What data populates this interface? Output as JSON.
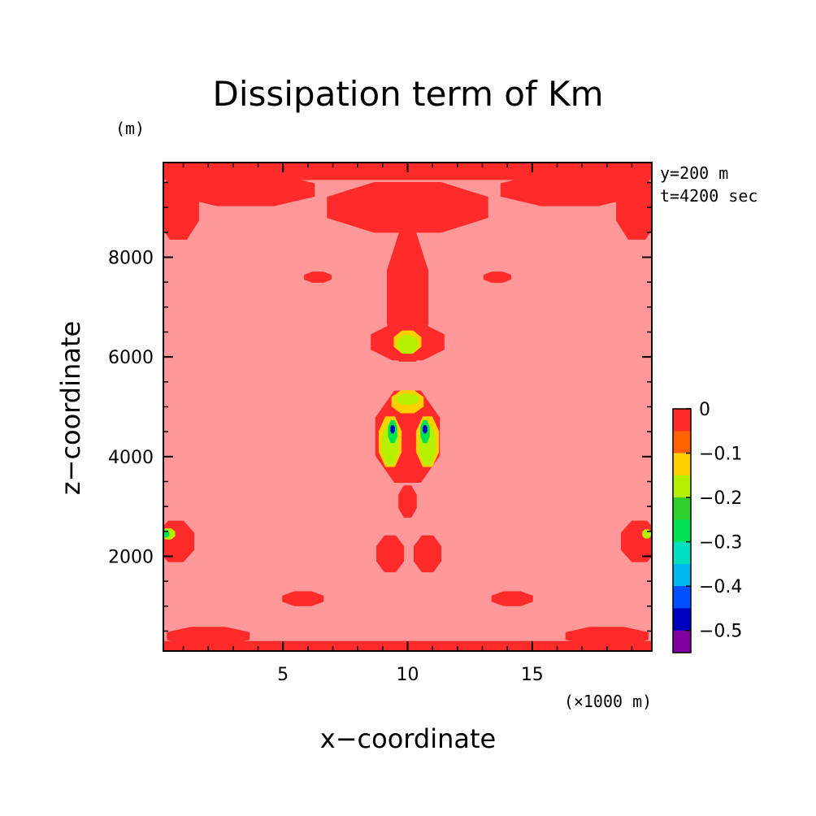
{
  "chart_data": {
    "type": "heatmap",
    "title": "Dissipation term of Km",
    "xlabel": "x−coordinate",
    "ylabel": "z−coordinate",
    "x_unit": "(×1000 m)",
    "y_unit": "(m)",
    "xlim": [
      0.2,
      19.8
    ],
    "ylim": [
      100,
      9900
    ],
    "x_ticks": [
      5,
      10,
      15
    ],
    "x_tick_labels": [
      "5",
      "10",
      "15"
    ],
    "y_ticks": [
      2000,
      4000,
      6000,
      8000
    ],
    "y_tick_labels": [
      "2000",
      "4000",
      "6000",
      "8000"
    ],
    "annotations": [
      "y=200 m",
      "t=4200 sec"
    ],
    "colorbar": {
      "levels": [
        0,
        -0.05,
        -0.1,
        -0.15,
        -0.2,
        -0.25,
        -0.3,
        -0.35,
        -0.4,
        -0.45,
        -0.5
      ],
      "tick_labels": [
        "0",
        "−0.1",
        "−0.2",
        "−0.3",
        "−0.4",
        "−0.5"
      ],
      "tick_values": [
        0,
        -0.1,
        -0.2,
        -0.3,
        -0.4,
        -0.5
      ],
      "colors": [
        "#ff2a2a",
        "#ff6000",
        "#ffd000",
        "#b4f000",
        "#2ed02e",
        "#00e050",
        "#00e0c0",
        "#00b8f0",
        "#0050ff",
        "#0000c0",
        "#8000a0"
      ]
    },
    "background_color": "#ff9898",
    "regions": [
      {
        "level": 0,
        "kind": "band",
        "x": [
          0.2,
          19.8
        ],
        "z": [
          9550,
          9900
        ]
      },
      {
        "level": 0,
        "kind": "band",
        "x": [
          0.2,
          19.8
        ],
        "z": [
          100,
          300
        ]
      },
      {
        "level": 0,
        "kind": "blob",
        "cx": 10.0,
        "cz": 9000,
        "rx": 3.5,
        "rz": 550
      },
      {
        "level": 0,
        "kind": "blob",
        "cx": 3.5,
        "cz": 9350,
        "rx": 3.0,
        "rz": 350
      },
      {
        "level": 0,
        "kind": "blob",
        "cx": 16.5,
        "cz": 9350,
        "rx": 3.0,
        "rz": 350
      },
      {
        "level": 0,
        "kind": "blob",
        "cx": 0.8,
        "cz": 9000,
        "rx": 0.9,
        "rz": 700
      },
      {
        "level": 0,
        "kind": "blob",
        "cx": 19.2,
        "cz": 9000,
        "rx": 0.9,
        "rz": 700
      },
      {
        "level": 0,
        "kind": "blob",
        "cx": 10.0,
        "cz": 7200,
        "rx": 0.9,
        "rz": 1400
      },
      {
        "level": 0,
        "kind": "blob",
        "cx": 6.4,
        "cz": 7600,
        "rx": 0.6,
        "rz": 120
      },
      {
        "level": 0,
        "kind": "blob",
        "cx": 13.6,
        "cz": 7600,
        "rx": 0.6,
        "rz": 120
      },
      {
        "level": 0,
        "kind": "blob",
        "cx": 10.0,
        "cz": 6300,
        "rx": 1.6,
        "rz": 400
      },
      {
        "level": 0,
        "kind": "blob",
        "cx": 10.0,
        "cz": 4400,
        "rx": 1.4,
        "rz": 1000
      },
      {
        "level": 0,
        "kind": "blob",
        "cx": 10.0,
        "cz": 3100,
        "rx": 0.4,
        "rz": 350
      },
      {
        "level": 0,
        "kind": "blob",
        "cx": 9.3,
        "cz": 2050,
        "rx": 0.6,
        "rz": 400
      },
      {
        "level": 0,
        "kind": "blob",
        "cx": 10.8,
        "cz": 2050,
        "rx": 0.6,
        "rz": 400
      },
      {
        "level": 0,
        "kind": "blob",
        "cx": 0.7,
        "cz": 2300,
        "rx": 0.8,
        "rz": 450
      },
      {
        "level": 0,
        "kind": "blob",
        "cx": 19.3,
        "cz": 2300,
        "rx": 0.8,
        "rz": 450
      },
      {
        "level": 0,
        "kind": "blob",
        "cx": 5.8,
        "cz": 1150,
        "rx": 0.9,
        "rz": 160
      },
      {
        "level": 0,
        "kind": "blob",
        "cx": 14.2,
        "cz": 1150,
        "rx": 0.9,
        "rz": 160
      },
      {
        "level": 0,
        "kind": "blob",
        "cx": 2.0,
        "cz": 400,
        "rx": 1.8,
        "rz": 200
      },
      {
        "level": 0,
        "kind": "blob",
        "cx": 18.0,
        "cz": 400,
        "rx": 1.8,
        "rz": 200
      },
      {
        "level": -0.1,
        "kind": "blob",
        "cx": 10.0,
        "cz": 6300,
        "rx": 0.6,
        "rz": 250
      },
      {
        "level": -0.1,
        "kind": "blob",
        "cx": 10.0,
        "cz": 5100,
        "rx": 0.7,
        "rz": 250
      },
      {
        "level": -0.1,
        "kind": "blob",
        "cx": 9.3,
        "cz": 4300,
        "rx": 0.5,
        "rz": 550
      },
      {
        "level": -0.1,
        "kind": "blob",
        "cx": 10.8,
        "cz": 4300,
        "rx": 0.5,
        "rz": 550
      },
      {
        "level": -0.15,
        "kind": "blob",
        "cx": 10.0,
        "cz": 6250,
        "rx": 0.45,
        "rz": 200
      },
      {
        "level": -0.15,
        "kind": "blob",
        "cx": 10.0,
        "cz": 5150,
        "rx": 0.5,
        "rz": 120
      },
      {
        "level": -0.15,
        "kind": "blob",
        "cx": 9.3,
        "cz": 4250,
        "rx": 0.35,
        "rz": 450
      },
      {
        "level": -0.15,
        "kind": "blob",
        "cx": 10.8,
        "cz": 4250,
        "rx": 0.35,
        "rz": 450
      },
      {
        "level": -0.15,
        "kind": "blob",
        "cx": 0.4,
        "cz": 2450,
        "rx": 0.3,
        "rz": 120
      },
      {
        "level": -0.15,
        "kind": "blob",
        "cx": 19.6,
        "cz": 2450,
        "rx": 0.2,
        "rz": 100
      },
      {
        "level": -0.25,
        "kind": "blob",
        "cx": 9.4,
        "cz": 4500,
        "rx": 0.2,
        "rz": 250
      },
      {
        "level": -0.25,
        "kind": "blob",
        "cx": 10.7,
        "cz": 4500,
        "rx": 0.2,
        "rz": 250
      },
      {
        "level": -0.25,
        "kind": "blob",
        "cx": 0.3,
        "cz": 2450,
        "rx": 0.15,
        "rz": 80
      },
      {
        "level": -0.45,
        "kind": "blob",
        "cx": 9.4,
        "cz": 4550,
        "rx": 0.1,
        "rz": 90
      },
      {
        "level": -0.45,
        "kind": "blob",
        "cx": 10.7,
        "cz": 4550,
        "rx": 0.1,
        "rz": 90
      }
    ]
  }
}
